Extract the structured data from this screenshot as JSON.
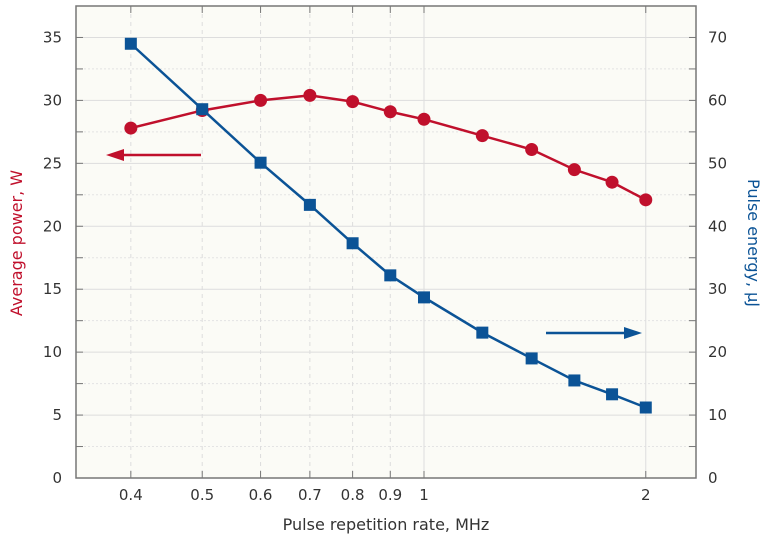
{
  "chart_data": {
    "type": "line",
    "title": "",
    "xlabel": "Pulse repetition rate, MHz",
    "ylabel_left": "Average power, W",
    "ylabel_right": "Pulse energy, μJ",
    "x_scale": "log",
    "xlim": [
      0.337,
      2.34
    ],
    "ylim_left": [
      0,
      37.5
    ],
    "ylim_right": [
      0,
      75
    ],
    "x_ticks": [
      0.4,
      0.5,
      0.6,
      0.7,
      0.8,
      0.9,
      1,
      2
    ],
    "x_tick_labels": [
      "0.4",
      "0.5",
      "0.6",
      "0.7",
      "0.8",
      "0.9",
      "1",
      "2"
    ],
    "y_left_ticks": [
      0,
      5,
      10,
      15,
      20,
      25,
      30,
      35
    ],
    "y_left_tick_labels": [
      "0",
      "5",
      "10",
      "15",
      "20",
      "25",
      "30",
      "35"
    ],
    "y_right_ticks": [
      0,
      10,
      20,
      30,
      40,
      50,
      60,
      70
    ],
    "y_right_tick_labels": [
      "0",
      "10",
      "20",
      "30",
      "40",
      "50",
      "60",
      "70"
    ],
    "grid": true,
    "x": [
      0.4,
      0.5,
      0.6,
      0.7,
      0.8,
      0.9,
      1.0,
      1.2,
      1.4,
      1.6,
      1.8,
      2.0
    ],
    "series": [
      {
        "axis": "left",
        "marker": "circle",
        "color": "#c0102c",
        "values": [
          27.8,
          29.2,
          30.0,
          30.4,
          29.9,
          29.1,
          28.5,
          27.2,
          26.1,
          24.5,
          23.5,
          22.1
        ]
      },
      {
        "axis": "right",
        "marker": "square",
        "color": "#0b5396",
        "values": [
          69.0,
          58.6,
          50.1,
          43.4,
          37.3,
          32.2,
          28.7,
          23.1,
          19.0,
          15.5,
          13.3,
          11.2
        ]
      }
    ],
    "annotations": [
      {
        "type": "arrow",
        "direction": "left",
        "color": "#c0102c",
        "meaning": "left axis"
      },
      {
        "type": "arrow",
        "direction": "right",
        "color": "#0b5396",
        "meaning": "right axis"
      }
    ],
    "plot_background": "#fbfbf6"
  }
}
